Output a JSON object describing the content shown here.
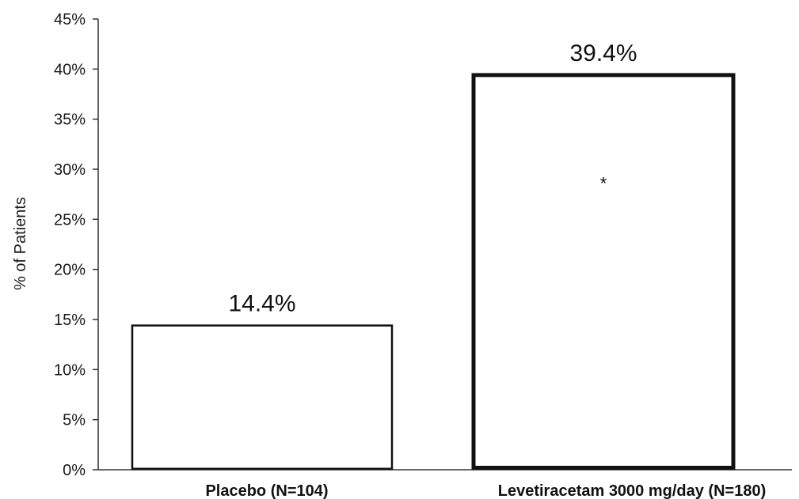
{
  "chart_data": {
    "type": "bar",
    "title": "",
    "xlabel": "",
    "ylabel": "% of Patients",
    "ylim": [
      0,
      45
    ],
    "yticks": [
      0,
      5,
      10,
      15,
      20,
      25,
      30,
      35,
      40,
      45
    ],
    "ytick_suffix": "%",
    "grid": false,
    "legend": "none",
    "categories": [
      "Placebo (N=104)",
      "Levetiracetam 3000 mg/day (N=180)"
    ],
    "values": [
      14.4,
      39.4
    ],
    "data_labels": [
      "14.4%",
      "39.4%"
    ],
    "annotations": [
      "",
      "*"
    ],
    "bar_fill": "#ffffff",
    "bar_edge": "#111111",
    "emphasized_bar_index": 1
  }
}
